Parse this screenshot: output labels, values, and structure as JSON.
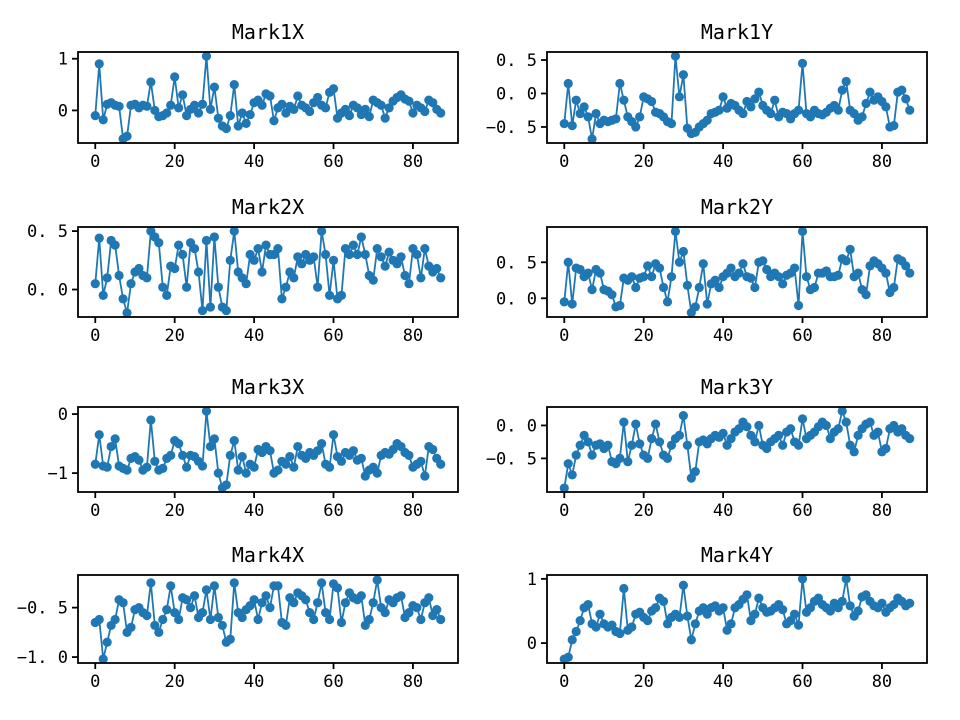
{
  "figure": {
    "background": "#ffffff",
    "axis_color": "#000000",
    "marker_color": "#1f77b4",
    "grid": false,
    "legend": "none",
    "layout": "4 rows x 2 columns of line plots with circle markers",
    "xticks": [
      {
        "value": 0,
        "label": "0"
      },
      {
        "value": 20,
        "label": "20"
      },
      {
        "value": 40,
        "label": "40"
      },
      {
        "value": 60,
        "label": "60"
      },
      {
        "value": 80,
        "label": "80"
      }
    ],
    "xlim": [
      -4.35,
      91.35
    ]
  },
  "chart_data": [
    {
      "type": "line",
      "title": "Mark1X",
      "marker": "circle",
      "color": "#1f77b4",
      "x_start": 0,
      "x_step": 1,
      "ylim": [
        -0.63,
        1.13
      ],
      "yticks": [
        {
          "value": 1,
          "label": "1"
        },
        {
          "value": 0,
          "label": "0"
        }
      ],
      "values": [
        -0.1,
        0.9,
        -0.18,
        0.12,
        0.15,
        0.1,
        0.08,
        -0.55,
        -0.5,
        0.1,
        0.12,
        0.05,
        0.1,
        0.08,
        0.55,
        0.0,
        -0.12,
        -0.1,
        -0.05,
        0.1,
        0.65,
        0.05,
        0.3,
        -0.1,
        0.02,
        0.1,
        -0.05,
        0.12,
        1.05,
        0.02,
        0.45,
        -0.15,
        -0.3,
        -0.35,
        -0.1,
        0.5,
        -0.3,
        -0.05,
        -0.25,
        -0.08,
        0.15,
        0.2,
        0.1,
        0.32,
        0.28,
        -0.2,
        0.05,
        0.12,
        -0.05,
        0.08,
        0.02,
        0.28,
        0.1,
        0.05,
        -0.02,
        0.15,
        0.25,
        0.1,
        0.05,
        0.35,
        0.42,
        -0.15,
        -0.05,
        0.02,
        -0.1,
        0.1,
        0.05,
        -0.08,
        0.02,
        -0.12,
        0.2,
        0.15,
        0.1,
        -0.15,
        0.05,
        0.18,
        0.25,
        0.3,
        0.22,
        0.18,
        -0.05,
        0.1,
        0.05,
        -0.02,
        0.2,
        0.15,
        0.02,
        -0.05
      ]
    },
    {
      "type": "line",
      "title": "Mark1Y",
      "marker": "circle",
      "color": "#1f77b4",
      "x_start": 0,
      "x_step": 1,
      "ylim": [
        -0.74,
        0.62
      ],
      "yticks": [
        {
          "value": 0.5,
          "label": "0. 5"
        },
        {
          "value": 0,
          "label": "0. 0"
        },
        {
          "value": -0.5,
          "label": "−0. 5"
        }
      ],
      "values": [
        -0.45,
        0.15,
        -0.48,
        -0.1,
        -0.3,
        -0.2,
        -0.35,
        -0.68,
        -0.3,
        -0.45,
        -0.4,
        -0.42,
        -0.4,
        -0.38,
        0.15,
        -0.1,
        -0.35,
        -0.42,
        -0.5,
        -0.35,
        -0.05,
        -0.08,
        -0.12,
        -0.28,
        -0.3,
        -0.35,
        -0.42,
        -0.45,
        0.56,
        -0.05,
        0.28,
        -0.52,
        -0.6,
        -0.58,
        -0.5,
        -0.45,
        -0.4,
        -0.3,
        -0.28,
        -0.25,
        -0.05,
        -0.22,
        -0.15,
        -0.18,
        -0.25,
        -0.3,
        -0.12,
        -0.2,
        -0.08,
        0.02,
        -0.18,
        -0.25,
        -0.3,
        -0.1,
        -0.35,
        -0.28,
        -0.3,
        -0.38,
        -0.3,
        -0.25,
        0.45,
        -0.3,
        -0.35,
        -0.25,
        -0.3,
        -0.32,
        -0.28,
        -0.22,
        -0.18,
        -0.25,
        0.05,
        0.18,
        -0.25,
        -0.3,
        -0.4,
        -0.35,
        -0.15,
        0.02,
        -0.1,
        -0.05,
        -0.12,
        -0.2,
        -0.5,
        -0.48,
        0.02,
        0.05,
        -0.08,
        -0.25
      ]
    },
    {
      "type": "line",
      "title": "Mark2X",
      "marker": "circle",
      "color": "#1f77b4",
      "x_start": 0,
      "x_step": 1,
      "ylim": [
        -0.235,
        0.535
      ],
      "yticks": [
        {
          "value": 0.5,
          "label": "0. 5"
        },
        {
          "value": 0,
          "label": "0. 0"
        }
      ],
      "values": [
        0.05,
        0.44,
        -0.05,
        0.1,
        0.42,
        0.38,
        0.12,
        -0.08,
        -0.2,
        0.05,
        0.15,
        0.18,
        0.12,
        0.1,
        0.5,
        0.45,
        0.4,
        0.02,
        -0.05,
        0.2,
        0.18,
        0.38,
        0.3,
        0.02,
        0.4,
        0.35,
        0.15,
        -0.18,
        0.42,
        -0.15,
        0.45,
        0.02,
        -0.15,
        -0.18,
        0.25,
        0.5,
        0.15,
        0.1,
        0.05,
        0.3,
        0.25,
        0.35,
        0.15,
        0.38,
        0.3,
        0.3,
        0.35,
        -0.08,
        0.02,
        0.15,
        0.1,
        0.28,
        0.22,
        0.3,
        0.25,
        0.28,
        0.02,
        0.5,
        0.3,
        -0.05,
        0.25,
        -0.08,
        -0.05,
        0.35,
        0.3,
        0.38,
        0.3,
        0.45,
        0.3,
        0.12,
        0.08,
        0.35,
        0.28,
        0.2,
        0.32,
        0.25,
        0.22,
        0.28,
        0.12,
        0.05,
        0.35,
        0.3,
        0.1,
        0.35,
        0.2,
        0.15,
        0.18,
        0.1
      ]
    },
    {
      "type": "line",
      "title": "Mark2Y",
      "marker": "circle",
      "color": "#1f77b4",
      "x_start": 0,
      "x_step": 1,
      "ylim": [
        -0.26,
        0.99
      ],
      "yticks": [
        {
          "value": 0.5,
          "label": "0. 5"
        },
        {
          "value": 0,
          "label": "0. 0"
        }
      ],
      "values": [
        -0.05,
        0.5,
        -0.08,
        0.42,
        0.4,
        0.3,
        0.35,
        0.12,
        0.4,
        0.35,
        0.12,
        0.1,
        0.05,
        -0.12,
        -0.1,
        0.28,
        0.25,
        0.3,
        0.15,
        0.28,
        0.3,
        0.45,
        0.3,
        0.48,
        0.42,
        0.15,
        -0.05,
        0.3,
        0.93,
        0.5,
        0.65,
        0.18,
        -0.2,
        -0.12,
        0.15,
        0.48,
        -0.08,
        0.2,
        0.25,
        0.15,
        0.3,
        0.35,
        0.42,
        0.3,
        0.35,
        0.48,
        0.3,
        0.28,
        0.15,
        0.5,
        0.52,
        0.4,
        0.3,
        0.35,
        0.3,
        0.2,
        0.32,
        0.35,
        0.42,
        -0.1,
        0.93,
        0.3,
        0.12,
        0.15,
        0.35,
        0.35,
        0.38,
        0.3,
        0.3,
        0.32,
        0.55,
        0.52,
        0.68,
        0.3,
        0.35,
        0.12,
        0.05,
        0.45,
        0.52,
        0.48,
        0.42,
        0.35,
        0.08,
        0.15,
        0.55,
        0.52,
        0.45,
        0.35
      ]
    },
    {
      "type": "line",
      "title": "Mark3X",
      "marker": "circle",
      "color": "#1f77b4",
      "x_start": 0,
      "x_step": 1,
      "ylim": [
        -1.32,
        0.12
      ],
      "yticks": [
        {
          "value": 0,
          "label": "0"
        },
        {
          "value": -1,
          "label": "−1"
        }
      ],
      "values": [
        -0.85,
        -0.35,
        -0.88,
        -0.9,
        -0.55,
        -0.42,
        -0.88,
        -0.92,
        -0.95,
        -0.75,
        -0.72,
        -0.78,
        -0.95,
        -0.9,
        -0.1,
        -0.8,
        -0.95,
        -0.92,
        -0.75,
        -0.7,
        -0.45,
        -0.5,
        -0.7,
        -0.9,
        -0.7,
        -0.72,
        -0.8,
        -0.88,
        0.05,
        -0.55,
        -0.42,
        -1.0,
        -1.25,
        -1.2,
        -0.7,
        -0.45,
        -0.95,
        -0.72,
        -1.0,
        -0.85,
        -0.9,
        -0.6,
        -0.65,
        -0.55,
        -0.62,
        -1.0,
        -0.95,
        -0.8,
        -0.85,
        -0.72,
        -0.9,
        -0.55,
        -0.7,
        -0.75,
        -0.65,
        -0.7,
        -0.62,
        -0.5,
        -0.85,
        -0.9,
        -0.35,
        -0.72,
        -0.8,
        -0.65,
        -0.7,
        -0.62,
        -0.78,
        -0.75,
        -1.05,
        -0.95,
        -0.9,
        -1.0,
        -0.7,
        -0.65,
        -0.68,
        -0.6,
        -0.5,
        -0.55,
        -0.65,
        -0.7,
        -0.9,
        -0.85,
        -0.8,
        -1.05,
        -0.55,
        -0.6,
        -0.75,
        -0.85
      ]
    },
    {
      "type": "line",
      "title": "Mark3Y",
      "marker": "circle",
      "color": "#1f77b4",
      "x_start": 0,
      "x_step": 1,
      "ylim": [
        -1.01,
        0.28
      ],
      "yticks": [
        {
          "value": 0,
          "label": "0. 0"
        },
        {
          "value": -0.5,
          "label": "−0. 5"
        }
      ],
      "values": [
        -0.95,
        -0.58,
        -0.75,
        -0.45,
        -0.3,
        -0.15,
        -0.25,
        -0.45,
        -0.3,
        -0.28,
        -0.35,
        -0.3,
        -0.55,
        -0.58,
        -0.5,
        0.05,
        -0.55,
        -0.3,
        0.02,
        -0.28,
        -0.45,
        -0.5,
        -0.2,
        0.02,
        -0.25,
        -0.45,
        -0.5,
        -0.3,
        -0.2,
        -0.15,
        0.15,
        -0.3,
        -0.8,
        -0.7,
        -0.25,
        -0.22,
        -0.28,
        -0.2,
        -0.15,
        -0.18,
        -0.12,
        -0.3,
        -0.2,
        -0.1,
        -0.05,
        0.05,
        -0.02,
        -0.15,
        -0.25,
        0.0,
        -0.3,
        -0.35,
        -0.25,
        -0.2,
        -0.15,
        -0.3,
        -0.1,
        -0.05,
        -0.25,
        -0.3,
        0.1,
        -0.2,
        -0.15,
        -0.1,
        -0.02,
        0.05,
        0.0,
        -0.2,
        -0.1,
        -0.05,
        0.22,
        0.05,
        -0.3,
        -0.4,
        -0.15,
        -0.05,
        0.02,
        0.05,
        -0.15,
        -0.1,
        -0.4,
        -0.35,
        -0.05,
        0.0,
        -0.1,
        -0.05,
        -0.15,
        -0.2
      ]
    },
    {
      "type": "line",
      "title": "Mark4X",
      "marker": "circle",
      "color": "#1f77b4",
      "x_start": 0,
      "x_step": 1,
      "ylim": [
        -1.06,
        -0.17
      ],
      "yticks": [
        {
          "value": -0.5,
          "label": "−0. 5"
        },
        {
          "value": -1.0,
          "label": "−1. 0"
        }
      ],
      "values": [
        -0.65,
        -0.62,
        -1.02,
        -0.85,
        -0.68,
        -0.62,
        -0.42,
        -0.45,
        -0.75,
        -0.7,
        -0.52,
        -0.5,
        -0.55,
        -0.58,
        -0.25,
        -0.68,
        -0.75,
        -0.62,
        -0.52,
        -0.28,
        -0.55,
        -0.62,
        -0.4,
        -0.42,
        -0.5,
        -0.38,
        -0.6,
        -0.55,
        -0.32,
        -0.62,
        -0.28,
        -0.6,
        -0.68,
        -0.85,
        -0.82,
        -0.25,
        -0.55,
        -0.6,
        -0.52,
        -0.48,
        -0.42,
        -0.62,
        -0.45,
        -0.38,
        -0.5,
        -0.28,
        -0.28,
        -0.65,
        -0.68,
        -0.4,
        -0.45,
        -0.35,
        -0.38,
        -0.42,
        -0.55,
        -0.62,
        -0.45,
        -0.25,
        -0.55,
        -0.62,
        -0.26,
        -0.3,
        -0.65,
        -0.45,
        -0.35,
        -0.4,
        -0.42,
        -0.38,
        -0.68,
        -0.62,
        -0.45,
        -0.22,
        -0.5,
        -0.55,
        -0.42,
        -0.45,
        -0.4,
        -0.38,
        -0.6,
        -0.55,
        -0.48,
        -0.5,
        -0.62,
        -0.45,
        -0.4,
        -0.58,
        -0.52,
        -0.62
      ]
    },
    {
      "type": "line",
      "title": "Mark4Y",
      "marker": "circle",
      "color": "#1f77b4",
      "x_start": 0,
      "x_step": 1,
      "ylim": [
        -0.31,
        1.06
      ],
      "yticks": [
        {
          "value": 1,
          "label": "1"
        },
        {
          "value": 0,
          "label": "0"
        }
      ],
      "values": [
        -0.25,
        -0.22,
        0.05,
        0.18,
        0.35,
        0.55,
        0.6,
        0.3,
        0.25,
        0.45,
        0.3,
        0.25,
        0.28,
        0.18,
        0.15,
        0.85,
        0.2,
        0.25,
        0.45,
        0.48,
        0.4,
        0.35,
        0.5,
        0.55,
        0.7,
        0.65,
        0.3,
        0.4,
        0.45,
        0.4,
        0.9,
        0.42,
        0.05,
        0.3,
        0.5,
        0.55,
        0.45,
        0.55,
        0.58,
        0.5,
        0.55,
        0.2,
        0.3,
        0.55,
        0.6,
        0.68,
        0.75,
        0.35,
        0.45,
        0.7,
        0.55,
        0.48,
        0.5,
        0.55,
        0.6,
        0.52,
        0.3,
        0.35,
        0.45,
        0.28,
        1.0,
        0.48,
        0.55,
        0.65,
        0.7,
        0.6,
        0.55,
        0.5,
        0.62,
        0.55,
        0.65,
        1.0,
        0.58,
        0.42,
        0.5,
        0.72,
        0.75,
        0.65,
        0.58,
        0.55,
        0.62,
        0.48,
        0.55,
        0.6,
        0.7,
        0.65,
        0.58,
        0.62
      ]
    }
  ]
}
